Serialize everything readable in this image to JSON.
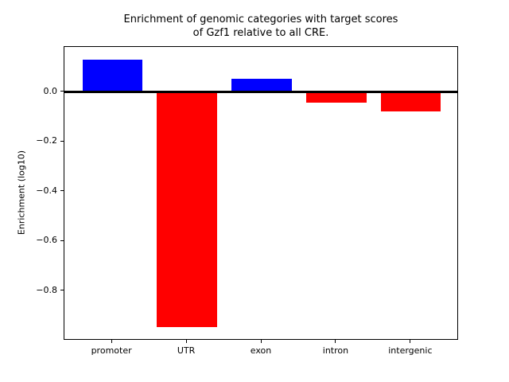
{
  "chart_data": {
    "type": "bar",
    "title": "Enrichment of genomic categories with target scores\nof Gzf1 relative to all CRE.",
    "xlabel": "",
    "ylabel": "Enrichment (log10)",
    "categories": [
      "promoter",
      "UTR",
      "exon",
      "intron",
      "intergenic"
    ],
    "values": [
      0.128,
      -0.945,
      0.053,
      -0.044,
      -0.078
    ],
    "bar_colors": [
      "#0000ff",
      "#ff0000",
      "#0000ff",
      "#ff0000",
      "#ff0000"
    ],
    "positive_color": "#0000ff",
    "negative_color": "#ff0000",
    "bar_width": 0.8,
    "xlim": [
      -0.64,
      4.64
    ],
    "ylim": [
      -0.999,
      0.182
    ],
    "yticks": [
      {
        "value": 0.0,
        "label": "0.0"
      },
      {
        "value": -0.2,
        "label": "−0.2"
      },
      {
        "value": -0.4,
        "label": "−0.4"
      },
      {
        "value": -0.6,
        "label": "−0.6"
      },
      {
        "value": -0.8,
        "label": "−0.8"
      }
    ],
    "zero_line": {
      "value": 0.0,
      "color": "#000000",
      "thickness_px": 2.5
    },
    "grid": false,
    "legend": null,
    "axis_color": "#000000",
    "background": "#ffffff"
  }
}
